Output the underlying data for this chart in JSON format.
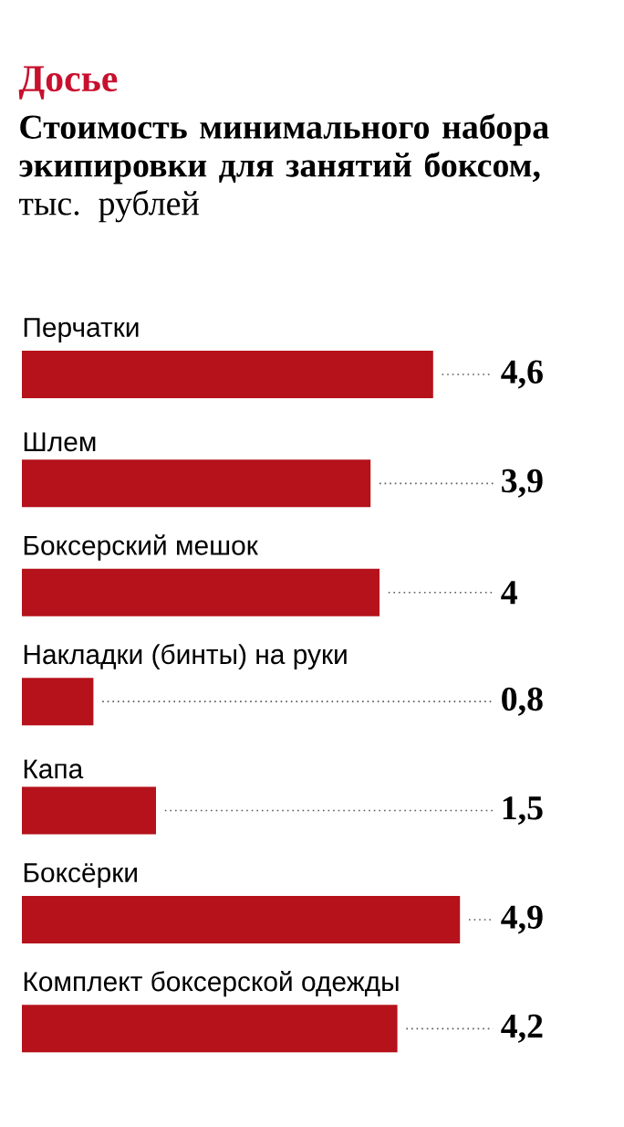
{
  "chart_data": {
    "type": "bar",
    "orientation": "horizontal",
    "title": "Досье",
    "subtitle": "**Стоимость минимального набора экипировки для занятий боксом,** тыс. рублей",
    "categories": [
      "Перчатки",
      "Шлем",
      "Боксерский мешок",
      "Накладки (бинты) на руки",
      "Капа",
      "Боксёрки",
      "Комплект боксерской одежды"
    ],
    "values": [
      4.6,
      3.9,
      4,
      0.8,
      1.5,
      4.9,
      4.2
    ],
    "value_labels": [
      "4,6",
      "3,9",
      "4",
      "0,8",
      "1,5",
      "4,9",
      "4,2"
    ],
    "color": "#b5121b"
  }
}
